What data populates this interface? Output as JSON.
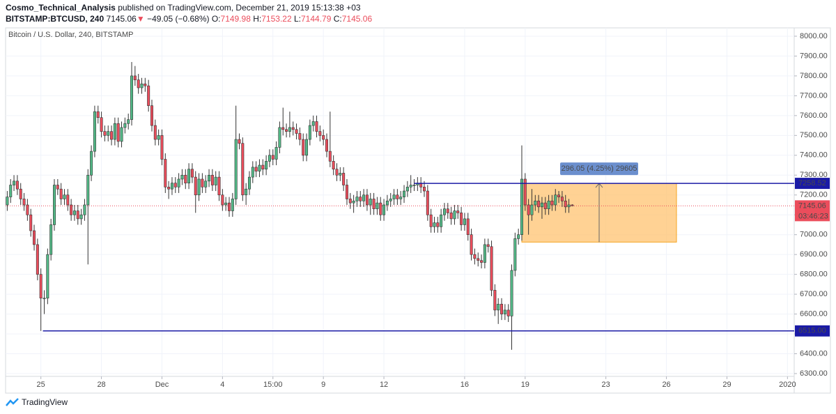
{
  "header": {
    "author": "Cosmo_Technical_Analysis",
    "published": "published on TradingView.com, December 21, 2019 15:13:38 +03",
    "symbol": "BITSTAMP:BTCUSD, 240",
    "last": "7145.06",
    "arrow": "▼",
    "change": "−49.05 (−0.68%)",
    "ohlc": [
      {
        "label": "O:",
        "value": "7149.98"
      },
      {
        "label": "H:",
        "value": "7153.22"
      },
      {
        "label": "L:",
        "value": "7144.79"
      },
      {
        "label": "C:",
        "value": "7145.06"
      }
    ]
  },
  "footer": {
    "brand": "TradingView"
  },
  "chart_data": {
    "type": "candlestick",
    "title": "Bitcoin / U.S. Dollar, 240, BITSTAMP",
    "up_color": "#53b987",
    "down_color": "#eb4d5c",
    "grid": true,
    "xlim": [
      -0.5,
      234
    ],
    "ylim": [
      6286,
      8042
    ],
    "xticks": [
      {
        "value": 10,
        "label": "25"
      },
      {
        "value": 28,
        "label": "28"
      },
      {
        "value": 46,
        "label": "Dec"
      },
      {
        "value": 64,
        "label": "4"
      },
      {
        "value": 79,
        "label": "15:00"
      },
      {
        "value": 94,
        "label": "9"
      },
      {
        "value": 112,
        "label": "12"
      },
      {
        "value": 136,
        "label": "16"
      },
      {
        "value": 154,
        "label": "19"
      },
      {
        "value": 178,
        "label": "23"
      },
      {
        "value": 196,
        "label": "26"
      },
      {
        "value": 214,
        "label": "29"
      },
      {
        "value": 232,
        "label": "2020"
      }
    ],
    "yticks": [
      {
        "value": 6300,
        "label": "6300.00"
      },
      {
        "value": 6400,
        "label": "6400.00"
      },
      {
        "value": 6500,
        "label": "6500.00"
      },
      {
        "value": 6600,
        "label": "6600.00"
      },
      {
        "value": 6700,
        "label": "6700.00"
      },
      {
        "value": 6800,
        "label": "6800.00"
      },
      {
        "value": 6900,
        "label": "6900.00"
      },
      {
        "value": 7000,
        "label": "7000.00"
      },
      {
        "value": 7100,
        "label": "7100.00"
      },
      {
        "value": 7200,
        "label": "7200.00"
      },
      {
        "value": 7300,
        "label": "7300.00"
      },
      {
        "value": 7400,
        "label": "7400.00"
      },
      {
        "value": 7500,
        "label": "7500.00"
      },
      {
        "value": 7600,
        "label": "7600.00"
      },
      {
        "value": 7700,
        "label": "7700.00"
      },
      {
        "value": 7800,
        "label": "7800.00"
      },
      {
        "value": 7900,
        "label": "7900.00"
      },
      {
        "value": 8000,
        "label": "8000.00"
      }
    ],
    "open": [
      7150,
      7190,
      7250,
      7270,
      7230,
      7180,
      7150,
      7100,
      7020,
      6950,
      6800,
      6680,
      6680,
      6900,
      7050,
      7250,
      7230,
      7180,
      7200,
      7150,
      7100,
      7120,
      7080,
      7100,
      7150,
      7300,
      7420,
      7620,
      7590,
      7520,
      7500,
      7520,
      7480,
      7560,
      7470,
      7540,
      7560,
      7580,
      7800,
      7780,
      7740,
      7760,
      7750,
      7650,
      7550,
      7480,
      7500,
      7380,
      7240,
      7230,
      7260,
      7240,
      7280,
      7300,
      7260,
      7330,
      7290,
      7200,
      7280,
      7240,
      7270,
      7300,
      7250,
      7290,
      7200,
      7150,
      7160,
      7120,
      7180,
      7480,
      7460,
      7200,
      7230,
      7290,
      7340,
      7320,
      7350,
      7330,
      7370,
      7400,
      7380,
      7440,
      7540,
      7530,
      7520,
      7540,
      7530,
      7510,
      7480,
      7400,
      7480,
      7550,
      7570,
      7520,
      7500,
      7480,
      7420,
      7370,
      7330,
      7300,
      7310,
      7250,
      7180,
      7160,
      7170,
      7190,
      7170,
      7200,
      7150,
      7180,
      7130,
      7160,
      7100,
      7150,
      7170,
      7180,
      7200,
      7180,
      7190,
      7220,
      7240,
      7250,
      7250,
      7260,
      7240,
      7220,
      7100,
      7040,
      7060,
      7040,
      7100,
      7130,
      7110,
      7080,
      7120,
      7110,
      7050,
      7080,
      7000,
      6900,
      6880,
      6870,
      6860,
      6950,
      6940,
      6720,
      6620,
      6650,
      6600,
      6620,
      6590,
      6820,
      6980,
      7000,
      7280,
      7150,
      7100,
      7150,
      7170,
      7140,
      7160,
      7130,
      7170,
      7150,
      7200,
      7190,
      7170,
      7140,
      7149.98
    ],
    "high": [
      7220,
      7280,
      7300,
      7300,
      7260,
      7210,
      7180,
      7130,
      7050,
      6980,
      6830,
      6720,
      6930,
      7080,
      7280,
      7280,
      7260,
      7230,
      7230,
      7180,
      7150,
      7150,
      7130,
      7180,
      7330,
      7450,
      7650,
      7650,
      7620,
      7550,
      7550,
      7550,
      7590,
      7590,
      7570,
      7590,
      7610,
      7870,
      7850,
      7810,
      7790,
      7790,
      7780,
      7680,
      7580,
      7530,
      7530,
      7410,
      7270,
      7290,
      7290,
      7310,
      7330,
      7330,
      7360,
      7360,
      7320,
      7310,
      7310,
      7300,
      7330,
      7330,
      7320,
      7320,
      7230,
      7190,
      7190,
      7210,
      7650,
      7510,
      7490,
      7260,
      7320,
      7370,
      7370,
      7380,
      7380,
      7400,
      7430,
      7430,
      7470,
      7570,
      7640,
      7560,
      7620,
      7570,
      7560,
      7540,
      7510,
      7510,
      7580,
      7600,
      7600,
      7550,
      7530,
      7510,
      7620,
      7400,
      7360,
      7340,
      7340,
      7280,
      7210,
      7200,
      7220,
      7220,
      7230,
      7230,
      7210,
      7210,
      7190,
      7190,
      7180,
      7200,
      7210,
      7230,
      7230,
      7220,
      7250,
      7270,
      7300,
      7280,
      7290,
      7290,
      7270,
      7250,
      7130,
      7090,
      7090,
      7130,
      7160,
      7160,
      7140,
      7150,
      7150,
      7140,
      7110,
      7110,
      7030,
      6930,
      6910,
      6900,
      6980,
      6980,
      6970,
      6750,
      6680,
      6680,
      6650,
      6650,
      6850,
      7010,
      7030,
      7450,
      7310,
      7180,
      7230,
      7200,
      7200,
      7190,
      7190,
      7200,
      7200,
      7230,
      7220,
      7220,
      7200,
      7180,
      7153.22
    ],
    "low": [
      7120,
      7160,
      7220,
      7200,
      7150,
      7120,
      7070,
      6990,
      6920,
      6770,
      6515,
      6600,
      6650,
      6870,
      7020,
      7200,
      7150,
      7150,
      7120,
      7070,
      7070,
      7050,
      7050,
      7070,
      6850,
      7270,
      7390,
      7560,
      7490,
      7470,
      7470,
      7450,
      7450,
      7440,
      7440,
      7510,
      7530,
      7550,
      7750,
      7710,
      7710,
      7720,
      7620,
      7520,
      7450,
      7450,
      7350,
      7210,
      7180,
      7200,
      7210,
      7210,
      7250,
      7230,
      7230,
      7260,
      7110,
      7170,
      7210,
      7210,
      7240,
      7220,
      7220,
      7170,
      7120,
      7120,
      7090,
      7090,
      7150,
      7430,
      7170,
      7150,
      7200,
      7260,
      7290,
      7290,
      7300,
      7300,
      7340,
      7350,
      7350,
      7410,
      7500,
      7490,
      7490,
      7500,
      7480,
      7450,
      7370,
      7370,
      7450,
      7520,
      7490,
      7470,
      7450,
      7390,
      7340,
      7300,
      7270,
      7270,
      7220,
      7150,
      7130,
      7110,
      7140,
      7140,
      7140,
      7120,
      7100,
      7100,
      7100,
      7070,
      7070,
      7120,
      7140,
      7150,
      7150,
      7150,
      7160,
      7190,
      7210,
      7220,
      7220,
      7210,
      7190,
      7070,
      7010,
      7010,
      7010,
      7010,
      7070,
      7080,
      7050,
      7050,
      7080,
      7020,
      7020,
      6970,
      6870,
      6850,
      6840,
      6830,
      6830,
      6910,
      6690,
      6590,
      6550,
      6570,
      6570,
      6560,
      6420,
      6790,
      6950,
      6970,
      7120,
      7000,
      7070,
      7120,
      7110,
      7080,
      7100,
      7100,
      7120,
      7120,
      7160,
      7140,
      7110,
      7110,
      7144.79
    ],
    "close": [
      7190,
      7250,
      7270,
      7230,
      7180,
      7150,
      7100,
      7020,
      6950,
      6800,
      6680,
      6680,
      6900,
      7050,
      7250,
      7230,
      7180,
      7200,
      7150,
      7100,
      7120,
      7080,
      7100,
      7150,
      7300,
      7420,
      7620,
      7590,
      7520,
      7500,
      7520,
      7480,
      7560,
      7470,
      7540,
      7560,
      7580,
      7800,
      7780,
      7740,
      7760,
      7750,
      7650,
      7550,
      7480,
      7500,
      7380,
      7240,
      7230,
      7260,
      7240,
      7280,
      7300,
      7260,
      7330,
      7290,
      7200,
      7280,
      7240,
      7270,
      7300,
      7250,
      7290,
      7200,
      7150,
      7160,
      7120,
      7180,
      7480,
      7460,
      7200,
      7230,
      7290,
      7340,
      7320,
      7350,
      7330,
      7370,
      7400,
      7380,
      7440,
      7540,
      7530,
      7520,
      7540,
      7530,
      7510,
      7480,
      7400,
      7480,
      7550,
      7570,
      7520,
      7500,
      7480,
      7420,
      7370,
      7330,
      7300,
      7310,
      7250,
      7180,
      7160,
      7170,
      7190,
      7170,
      7200,
      7150,
      7180,
      7130,
      7160,
      7100,
      7150,
      7170,
      7180,
      7200,
      7180,
      7190,
      7220,
      7240,
      7250,
      7250,
      7260,
      7240,
      7220,
      7100,
      7040,
      7060,
      7040,
      7100,
      7130,
      7110,
      7080,
      7120,
      7110,
      7050,
      7080,
      7000,
      6900,
      6880,
      6870,
      6860,
      6950,
      6940,
      6720,
      6620,
      6650,
      6600,
      6620,
      6590,
      6820,
      6980,
      7000,
      7280,
      7150,
      7100,
      7150,
      7170,
      7140,
      7160,
      7130,
      7170,
      7150,
      7200,
      7190,
      7170,
      7140,
      7149.98,
      7145.06
    ],
    "levels": [
      {
        "value": 7258.52,
        "label": "7258.52",
        "start": 121
      },
      {
        "value": 6515,
        "label": "6515.00",
        "start": 10.6
      }
    ],
    "level_color": "#1a1aa6",
    "last_price": {
      "value": 7145.06,
      "label": "7145.06",
      "countdown": "03:46:23"
    },
    "measure": {
      "from": 153,
      "to": 199,
      "low": 6962.47,
      "high": 7258.52,
      "label": "296.05 (4.25%) 29605"
    }
  }
}
